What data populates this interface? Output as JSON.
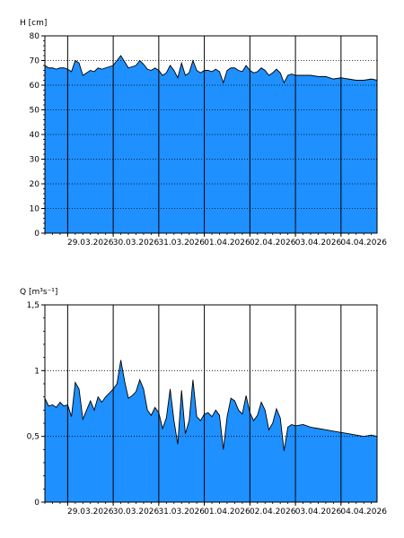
{
  "chart_data": [
    {
      "type": "area",
      "ylabel": "H [cm]",
      "ylim": [
        0,
        80
      ],
      "yticks": [
        0,
        10,
        20,
        30,
        40,
        50,
        60,
        70,
        80
      ],
      "ytick_labels": [
        "0",
        "10",
        "20",
        "30",
        "40",
        "50",
        "60",
        "70",
        "80"
      ],
      "grid": "horizontal dotted, vertical solid at midnight",
      "x_start": "28.03.2026 12:00",
      "x_end": "04.04.2026 19:00",
      "day_lines": [
        "29.03.2026 00:00",
        "30.03.2026 00:00",
        "31.03.2026 00:00",
        "01.04.2026 00:00",
        "02.04.2026 00:00",
        "03.04.2026 00:00",
        "04.04.2026 00:00"
      ],
      "x_labels": [
        "29.03.2026",
        "30.03.2026",
        "31.03.2026",
        "01.04.2026",
        "02.04.2026",
        "03.04.2026",
        "04.04.2026"
      ],
      "fill_color": "#1e90ff",
      "series": [
        {
          "x": [
            "28.03.2026 12:00",
            "28.03.2026 14:00",
            "28.03.2026 16:00",
            "28.03.2026 18:00",
            "28.03.2026 20:00",
            "28.03.2026 22:00",
            "29.03.2026 00:00",
            "29.03.2026 02:00",
            "29.03.2026 04:00",
            "29.03.2026 06:00",
            "29.03.2026 08:00",
            "29.03.2026 10:00",
            "29.03.2026 12:00",
            "29.03.2026 14:00",
            "29.03.2026 16:00",
            "29.03.2026 18:00",
            "29.03.2026 20:00",
            "29.03.2026 22:00",
            "30.03.2026 00:00",
            "30.03.2026 02:00",
            "30.03.2026 04:00",
            "30.03.2026 06:00",
            "30.03.2026 08:00",
            "30.03.2026 10:00",
            "30.03.2026 12:00",
            "30.03.2026 14:00",
            "30.03.2026 16:00",
            "30.03.2026 18:00",
            "30.03.2026 20:00",
            "30.03.2026 22:00",
            "31.03.2026 00:00",
            "31.03.2026 02:00",
            "31.03.2026 04:00",
            "31.03.2026 06:00",
            "31.03.2026 08:00",
            "31.03.2026 10:00",
            "31.03.2026 12:00",
            "31.03.2026 14:00",
            "31.03.2026 16:00",
            "31.03.2026 18:00",
            "31.03.2026 20:00",
            "31.03.2026 22:00",
            "01.04.2026 00:00",
            "01.04.2026 02:00",
            "01.04.2026 04:00",
            "01.04.2026 06:00",
            "01.04.2026 08:00",
            "01.04.2026 10:00",
            "01.04.2026 12:00",
            "01.04.2026 14:00",
            "01.04.2026 16:00",
            "01.04.2026 18:00",
            "01.04.2026 20:00",
            "01.04.2026 22:00",
            "02.04.2026 00:00",
            "02.04.2026 02:00",
            "02.04.2026 04:00",
            "02.04.2026 06:00",
            "02.04.2026 08:00",
            "02.04.2026 10:00",
            "02.04.2026 12:00",
            "02.04.2026 14:00",
            "02.04.2026 16:00",
            "02.04.2026 18:00",
            "02.04.2026 20:00",
            "02.04.2026 22:00",
            "03.04.2026 00:00",
            "03.04.2026 04:00",
            "03.04.2026 08:00",
            "03.04.2026 12:00",
            "03.04.2026 16:00",
            "03.04.2026 20:00",
            "04.04.2026 00:00",
            "04.04.2026 04:00",
            "04.04.2026 08:00",
            "04.04.2026 12:00",
            "04.04.2026 16:00",
            "04.04.2026 19:00"
          ],
          "y": [
            68,
            67,
            67,
            66.5,
            67,
            67,
            66.5,
            65.5,
            70,
            69,
            64,
            65,
            66,
            65.5,
            67,
            66.5,
            67,
            67.5,
            68,
            70,
            72,
            69.5,
            67,
            67.5,
            68,
            70,
            68.5,
            66.5,
            66,
            67,
            66,
            64,
            65,
            68,
            66,
            63,
            69,
            64,
            65,
            70,
            66,
            65,
            66,
            66,
            65.5,
            66.5,
            65.5,
            61,
            66,
            67,
            67,
            66,
            65.5,
            68,
            66,
            65,
            65.5,
            67,
            66,
            64,
            65,
            66.5,
            65,
            61,
            64,
            64.5,
            64,
            64,
            64,
            63.5,
            63.5,
            62.5,
            63,
            62.5,
            62,
            62,
            62.5,
            62
          ]
        }
      ]
    },
    {
      "type": "area",
      "ylabel": "Q [m³s⁻¹]",
      "ylim": [
        0,
        1.5
      ],
      "yticks": [
        0,
        0.5,
        1,
        1.5
      ],
      "ytick_labels": [
        "0",
        "0,5",
        "1",
        "1,5"
      ],
      "grid": "horizontal dotted, vertical solid at midnight",
      "x_start": "28.03.2026 12:00",
      "x_end": "04.04.2026 19:00",
      "day_lines": [
        "29.03.2026 00:00",
        "30.03.2026 00:00",
        "31.03.2026 00:00",
        "01.04.2026 00:00",
        "02.04.2026 00:00",
        "03.04.2026 00:00",
        "04.04.2026 00:00"
      ],
      "x_labels": [
        "29.03.2026",
        "30.03.2026",
        "31.03.2026",
        "01.04.2026",
        "02.04.2026",
        "03.04.2026",
        "04.04.2026"
      ],
      "fill_color": "#1e90ff",
      "series": [
        {
          "x": [
            "28.03.2026 12:00",
            "28.03.2026 14:00",
            "28.03.2026 16:00",
            "28.03.2026 18:00",
            "28.03.2026 20:00",
            "28.03.2026 22:00",
            "29.03.2026 00:00",
            "29.03.2026 02:00",
            "29.03.2026 04:00",
            "29.03.2026 06:00",
            "29.03.2026 08:00",
            "29.03.2026 10:00",
            "29.03.2026 12:00",
            "29.03.2026 14:00",
            "29.03.2026 16:00",
            "29.03.2026 18:00",
            "29.03.2026 20:00",
            "29.03.2026 22:00",
            "30.03.2026 00:00",
            "30.03.2026 02:00",
            "30.03.2026 04:00",
            "30.03.2026 06:00",
            "30.03.2026 08:00",
            "30.03.2026 10:00",
            "30.03.2026 12:00",
            "30.03.2026 14:00",
            "30.03.2026 16:00",
            "30.03.2026 18:00",
            "30.03.2026 20:00",
            "30.03.2026 22:00",
            "31.03.2026 00:00",
            "31.03.2026 02:00",
            "31.03.2026 04:00",
            "31.03.2026 06:00",
            "31.03.2026 08:00",
            "31.03.2026 10:00",
            "31.03.2026 12:00",
            "31.03.2026 14:00",
            "31.03.2026 16:00",
            "31.03.2026 18:00",
            "31.03.2026 20:00",
            "31.03.2026 22:00",
            "01.04.2026 00:00",
            "01.04.2026 02:00",
            "01.04.2026 04:00",
            "01.04.2026 06:00",
            "01.04.2026 08:00",
            "01.04.2026 10:00",
            "01.04.2026 12:00",
            "01.04.2026 14:00",
            "01.04.2026 16:00",
            "01.04.2026 18:00",
            "01.04.2026 20:00",
            "01.04.2026 22:00",
            "02.04.2026 00:00",
            "02.04.2026 02:00",
            "02.04.2026 04:00",
            "02.04.2026 06:00",
            "02.04.2026 08:00",
            "02.04.2026 10:00",
            "02.04.2026 12:00",
            "02.04.2026 14:00",
            "02.04.2026 16:00",
            "02.04.2026 18:00",
            "02.04.2026 20:00",
            "02.04.2026 22:00",
            "03.04.2026 00:00",
            "03.04.2026 04:00",
            "03.04.2026 08:00",
            "03.04.2026 12:00",
            "03.04.2026 16:00",
            "03.04.2026 20:00",
            "04.04.2026 00:00",
            "04.04.2026 04:00",
            "04.04.2026 08:00",
            "04.04.2026 12:00",
            "04.04.2026 16:00",
            "04.04.2026 19:00"
          ],
          "y": [
            0.79,
            0.73,
            0.74,
            0.72,
            0.76,
            0.73,
            0.74,
            0.65,
            0.91,
            0.86,
            0.63,
            0.7,
            0.77,
            0.7,
            0.8,
            0.76,
            0.8,
            0.83,
            0.86,
            0.9,
            1.08,
            0.92,
            0.79,
            0.81,
            0.84,
            0.93,
            0.86,
            0.7,
            0.66,
            0.72,
            0.68,
            0.56,
            0.64,
            0.86,
            0.62,
            0.44,
            0.85,
            0.52,
            0.62,
            0.93,
            0.65,
            0.62,
            0.67,
            0.68,
            0.65,
            0.7,
            0.66,
            0.4,
            0.65,
            0.79,
            0.77,
            0.7,
            0.67,
            0.81,
            0.68,
            0.62,
            0.66,
            0.76,
            0.7,
            0.55,
            0.6,
            0.71,
            0.64,
            0.39,
            0.57,
            0.59,
            0.58,
            0.59,
            0.57,
            0.56,
            0.55,
            0.54,
            0.53,
            0.52,
            0.51,
            0.5,
            0.51,
            0.5
          ]
        }
      ]
    }
  ]
}
